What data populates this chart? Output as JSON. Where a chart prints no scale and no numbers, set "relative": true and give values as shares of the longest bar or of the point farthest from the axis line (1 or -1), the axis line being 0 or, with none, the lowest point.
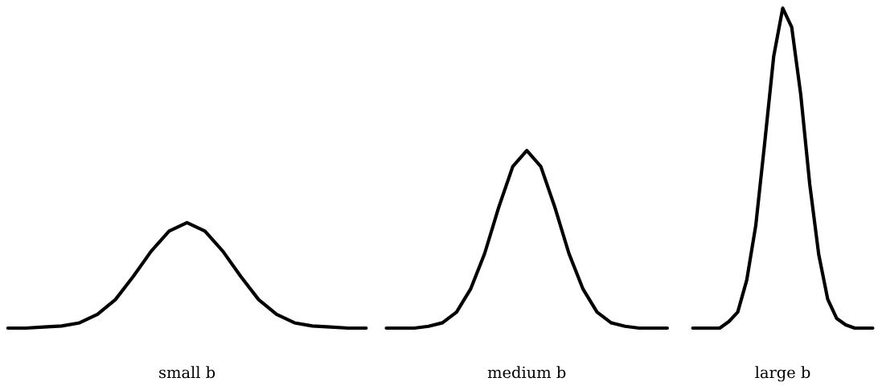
{
  "chart_data": [
    {
      "type": "line",
      "relative": true,
      "tick_labels": false,
      "color": "#000000",
      "xlabel": "small b",
      "categories": [
        null,
        null,
        null,
        null,
        null,
        null,
        null,
        null,
        null,
        null,
        null,
        null,
        null,
        null,
        null,
        null,
        null,
        null,
        null,
        null,
        null
      ],
      "values": [
        0,
        0,
        0.01,
        0.02,
        0.05,
        0.13,
        0.27,
        0.49,
        0.73,
        0.92,
        1,
        0.92,
        0.73,
        0.49,
        0.27,
        0.13,
        0.05,
        0.02,
        0.01,
        0,
        0
      ]
    },
    {
      "type": "line",
      "relative": true,
      "tick_labels": false,
      "color": "#000000",
      "xlabel": "medium b",
      "categories": [
        null,
        null,
        null,
        null,
        null,
        null,
        null,
        null,
        null,
        null,
        null,
        null,
        null,
        null,
        null,
        null,
        null,
        null,
        null,
        null,
        null
      ],
      "values": [
        0,
        0,
        0,
        0.01,
        0.03,
        0.09,
        0.22,
        0.42,
        0.68,
        0.91,
        1,
        0.91,
        0.68,
        0.42,
        0.22,
        0.09,
        0.03,
        0.01,
        0,
        0,
        0
      ]
    },
    {
      "type": "line",
      "relative": true,
      "tick_labels": false,
      "color": "#000000",
      "xlabel": "large b",
      "categories": [
        null,
        null,
        null,
        null,
        null,
        null,
        null,
        null,
        null,
        null,
        null,
        null,
        null,
        null,
        null,
        null,
        null,
        null,
        null,
        null,
        null
      ],
      "values": [
        0,
        0,
        0,
        0,
        0.02,
        0.05,
        0.15,
        0.32,
        0.58,
        0.85,
        1,
        0.94,
        0.73,
        0.45,
        0.23,
        0.09,
        0.03,
        0.01,
        0,
        0,
        0
      ]
    }
  ]
}
